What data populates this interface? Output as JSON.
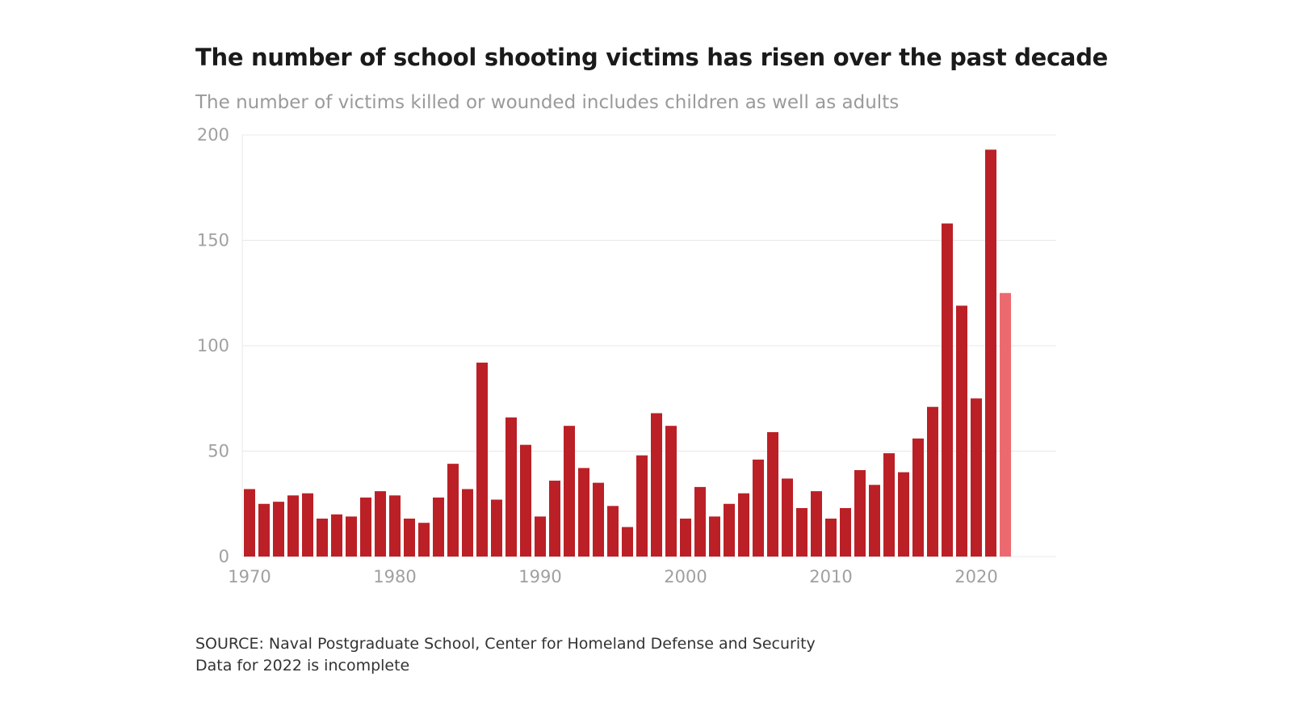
{
  "chart_data": {
    "type": "bar",
    "title": "The number of school shooting victims has risen over the past decade",
    "subtitle": "The number of victims killed or wounded includes children as well as adults",
    "xlabel": "",
    "ylabel": "",
    "x": [
      1970,
      1971,
      1972,
      1973,
      1974,
      1975,
      1976,
      1977,
      1978,
      1979,
      1980,
      1981,
      1982,
      1983,
      1984,
      1985,
      1986,
      1987,
      1988,
      1989,
      1990,
      1991,
      1992,
      1993,
      1994,
      1995,
      1996,
      1997,
      1998,
      1999,
      2000,
      2001,
      2002,
      2003,
      2004,
      2005,
      2006,
      2007,
      2008,
      2009,
      2010,
      2011,
      2012,
      2013,
      2014,
      2015,
      2016,
      2017,
      2018,
      2019,
      2020,
      2021,
      2022
    ],
    "values": [
      32,
      25,
      26,
      29,
      30,
      18,
      20,
      19,
      28,
      31,
      29,
      18,
      16,
      28,
      44,
      32,
      92,
      27,
      66,
      53,
      19,
      36,
      62,
      42,
      35,
      24,
      14,
      48,
      68,
      62,
      18,
      33,
      19,
      25,
      30,
      46,
      59,
      37,
      23,
      31,
      18,
      23,
      41,
      34,
      49,
      40,
      56,
      71,
      158,
      119,
      75,
      193,
      125
    ],
    "ylim": [
      0,
      200
    ],
    "xlim": [
      1969.5,
      2025.5
    ],
    "yticks": [
      0,
      50,
      100,
      150,
      200
    ],
    "xticks": [
      1970,
      1980,
      1990,
      2000,
      2010,
      2020
    ],
    "grid": "horizontal",
    "colors": {
      "bar": "#bb2027",
      "incomplete_bar": "#ec6a6f",
      "grid": "#e8e8e8"
    },
    "incomplete_year": 2022
  },
  "footer": {
    "source": "SOURCE: Naval Postgraduate School, Center for Homeland Defense and Security",
    "note": "Data for 2022 is incomplete"
  }
}
